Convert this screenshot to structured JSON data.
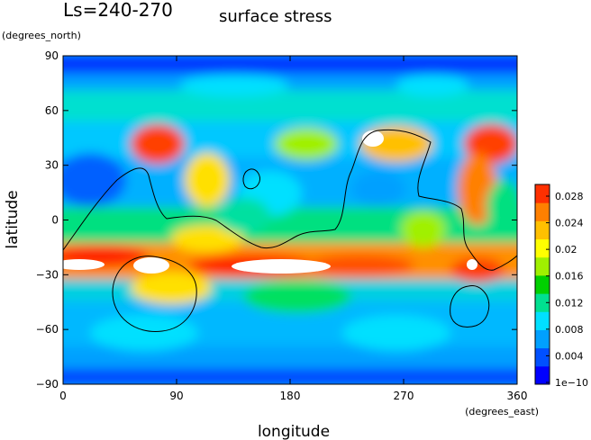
{
  "chart_data": {
    "type": "heatmap",
    "title_left": "Ls=240-270",
    "title": "surface stress",
    "xlabel": "longitude",
    "ylabel": "latitude",
    "x_units": "(degrees_east)",
    "y_units": "(degrees_north)",
    "xlim": [
      0,
      360
    ],
    "ylim": [
      -90,
      90
    ],
    "x_ticks": [
      "0",
      "90",
      "180",
      "270",
      "360"
    ],
    "y_ticks": [
      "90",
      "60",
      "30",
      "0",
      "−30",
      "−60",
      "−90"
    ],
    "colorbar": {
      "ticks": [
        "0.028",
        "0.024",
        "0.02",
        "0.016",
        "0.012",
        "0.008",
        "0.004",
        "1e−10"
      ],
      "range": [
        0,
        0.03
      ],
      "colors": [
        "#0000ff",
        "#0050ff",
        "#00a0ff",
        "#00e0ff",
        "#00e090",
        "#00d000",
        "#a0f000",
        "#ffff00",
        "#ffc000",
        "#ff8000",
        "#ff3000"
      ]
    },
    "grid": false,
    "legend": "right"
  }
}
